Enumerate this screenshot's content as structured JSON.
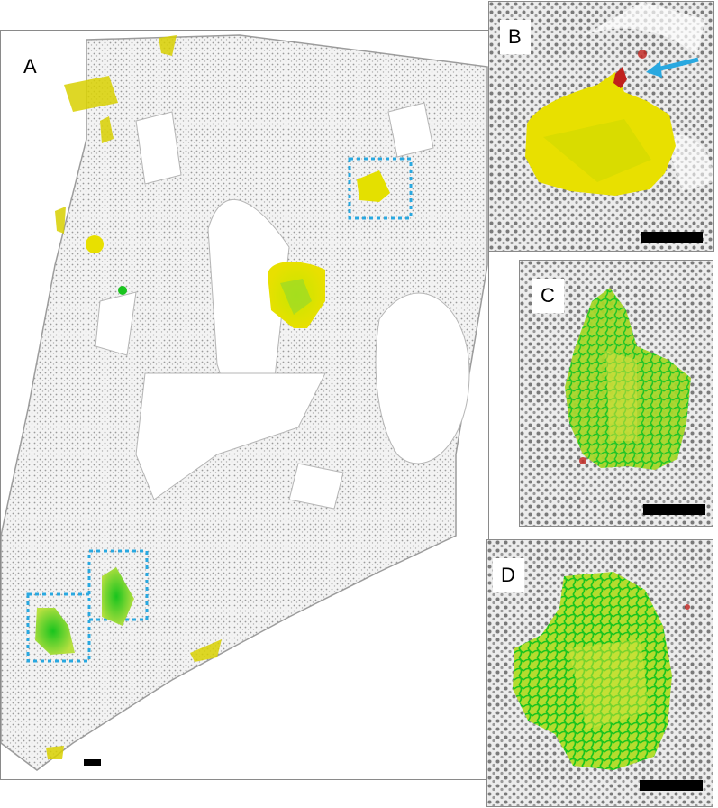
{
  "figure": {
    "panels": [
      {
        "label": "A",
        "content": "lung-tissue-section-overview"
      },
      {
        "label": "B",
        "content": "lesion-close-up-yellow"
      },
      {
        "label": "C",
        "content": "lesion-close-up-green"
      },
      {
        "label": "D",
        "content": "lesion-close-up-green-large"
      }
    ]
  },
  "colors": {
    "tissue": "#b8b8b8",
    "nuclei": "#6e6e6e",
    "yellow_signal": "#e8e000",
    "green_signal": "#19c41e",
    "red_signal": "#c0201c",
    "highlight_box": "#29a8e0",
    "arrow": "#29a8e0",
    "scale_bar": "#000000"
  },
  "icons": {
    "arrow": "arrow-icon"
  }
}
